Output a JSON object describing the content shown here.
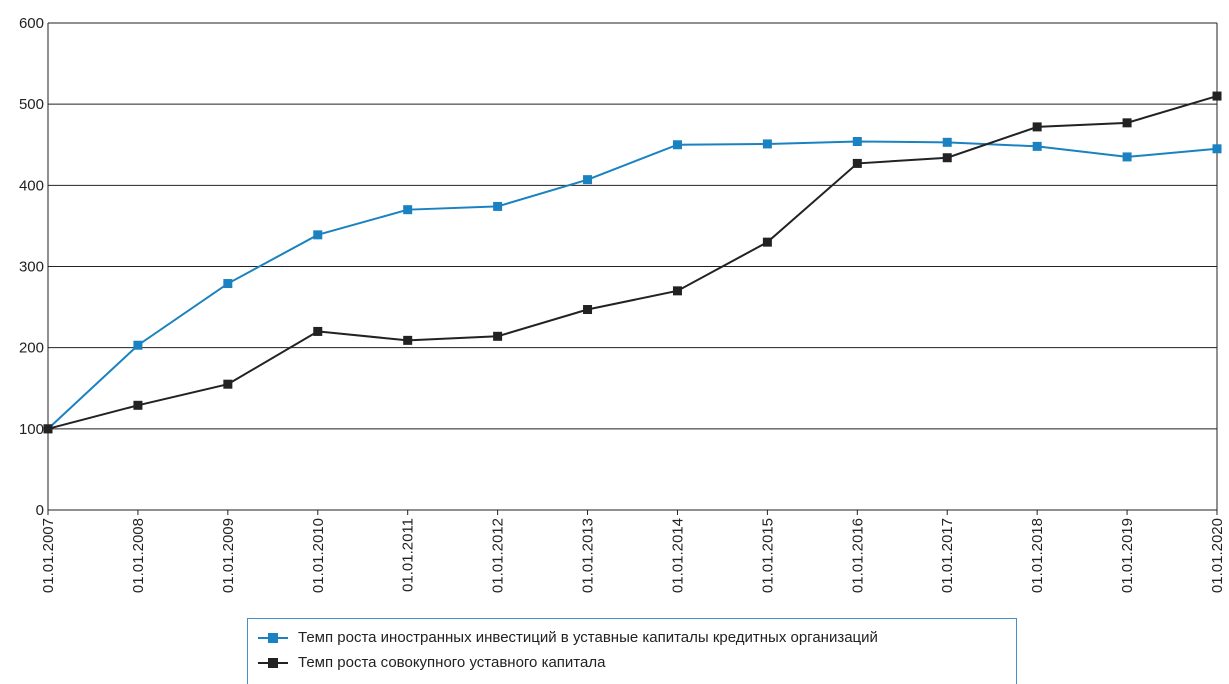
{
  "chart_data": {
    "type": "line",
    "categories": [
      "01.01.2007",
      "01.01.2008",
      "01.01.2009",
      "01.01.2010",
      "01.01.2011",
      "01.01.2012",
      "01.01.2013",
      "01.01.2014",
      "01.01.2015",
      "01.01.2016",
      "01.01.2017",
      "01.01.2018",
      "01.01.2019",
      "01.01.2020"
    ],
    "series": [
      {
        "name": "Темп роста иностранных инвестиций в уставные капиталы кредитных организаций",
        "color": "#1a82c0",
        "values": [
          100,
          203,
          279,
          339,
          370,
          374,
          407,
          450,
          451,
          454,
          453,
          448,
          435,
          445
        ]
      },
      {
        "name": "Темп роста совокупного уставного капитала",
        "color": "#222222",
        "values": [
          100,
          129,
          155,
          220,
          209,
          214,
          247,
          270,
          330,
          427,
          434,
          472,
          477,
          510
        ]
      }
    ],
    "yticks": [
      "0",
      "100",
      "200",
      "300",
      "400",
      "500",
      "600"
    ],
    "ylim": [
      0,
      600
    ],
    "grid": true,
    "legend_position": "bottom"
  }
}
